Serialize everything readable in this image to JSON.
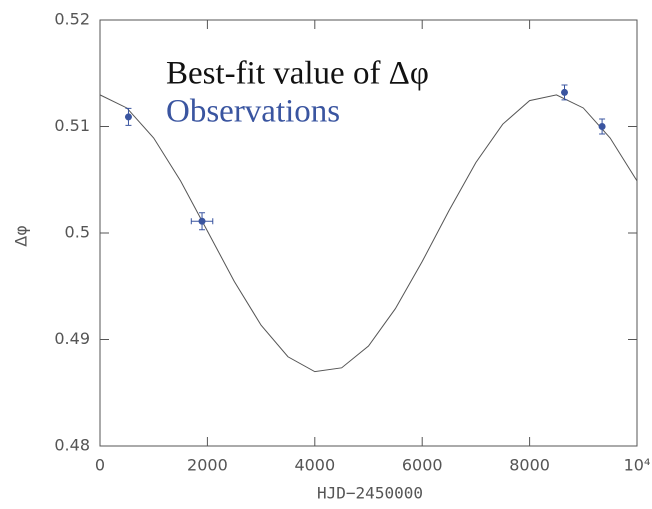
{
  "chart_data": {
    "type": "line",
    "xlabel": "HJD−2450000",
    "ylabel": "Δφ",
    "xlim": [
      0,
      10000
    ],
    "ylim": [
      0.48,
      0.52
    ],
    "xticks": [
      0,
      2000,
      4000,
      6000,
      8000,
      {
        "value": 10000,
        "label": "10⁴"
      }
    ],
    "yticks": [
      0.48,
      0.49,
      0.5,
      0.51,
      0.52
    ],
    "series": [
      {
        "name": "Best-fit value of Δφ",
        "color": "#555555",
        "x": [
          0,
          500,
          1000,
          1500,
          2000,
          2500,
          3000,
          3500,
          4000,
          4500,
          5000,
          5500,
          6000,
          6500,
          7000,
          7500,
          8000,
          8500,
          9000,
          9500,
          10000
        ],
        "values": [
          0.51297,
          0.51174,
          0.50892,
          0.50489,
          0.50019,
          0.49546,
          0.49134,
          0.48838,
          0.48698,
          0.48734,
          0.48939,
          0.49289,
          0.49732,
          0.50211,
          0.50662,
          0.51022,
          0.51243,
          0.51297,
          0.51174,
          0.50892,
          0.50489
        ]
      },
      {
        "name": "Observations",
        "color": "#3a55a0",
        "marker": "point",
        "x": [
          530,
          1900,
          8650,
          9350
        ],
        "values": [
          0.5109,
          0.5011,
          0.5132,
          0.51
        ],
        "yerr": [
          0.0008,
          0.0008,
          0.0007,
          0.0007
        ],
        "xerr": [
          null,
          200,
          null,
          null
        ]
      }
    ]
  }
}
